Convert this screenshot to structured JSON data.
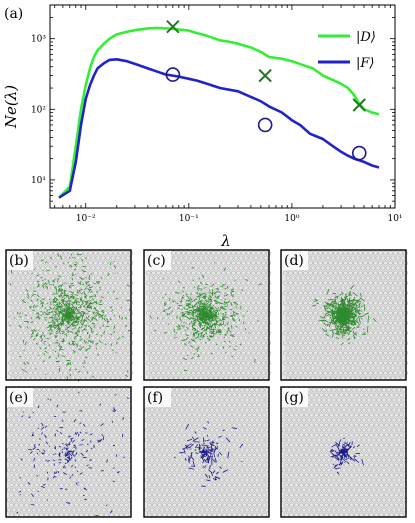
{
  "chart_data": {
    "type": "line",
    "title": "",
    "xlabel": "λ",
    "ylabel": "Ne(λ)",
    "xscale": "log",
    "yscale": "log",
    "xlim": [
      0.0045,
      10
    ],
    "ylim": [
      4,
      3000
    ],
    "grid": false,
    "legend_position": "top-right",
    "panel_label": "(a)",
    "x_tick_labels": [
      {
        "value": 0.01,
        "label": "10⁻²"
      },
      {
        "value": 0.1,
        "label": "10⁻¹"
      },
      {
        "value": 1,
        "label": "10⁰"
      },
      {
        "value": 10,
        "label": "10¹"
      }
    ],
    "y_tick_labels": [
      {
        "value": 10,
        "label": "10¹"
      },
      {
        "value": 100,
        "label": "10²"
      },
      {
        "value": 1000,
        "label": "10³"
      }
    ],
    "series": [
      {
        "name": "|D⟩",
        "color": "#33ee33",
        "x": [
          0.0055,
          0.007,
          0.008,
          0.009,
          0.01,
          0.011,
          0.012,
          0.013,
          0.015,
          0.017,
          0.02,
          0.025,
          0.03,
          0.04,
          0.05,
          0.06,
          0.07,
          0.08,
          0.1,
          0.12,
          0.15,
          0.2,
          0.25,
          0.3,
          0.4,
          0.5,
          0.6,
          0.8,
          1.0,
          1.3,
          1.6,
          2.0,
          2.5,
          3.0,
          3.5,
          4.0,
          4.5,
          5.0,
          5.5,
          6.0,
          7.0
        ],
        "y": [
          5.6,
          8,
          30,
          100,
          220,
          380,
          550,
          680,
          850,
          1000,
          1150,
          1250,
          1320,
          1400,
          1420,
          1400,
          1380,
          1350,
          1300,
          1200,
          1100,
          950,
          900,
          850,
          750,
          650,
          550,
          520,
          480,
          420,
          380,
          300,
          260,
          230,
          200,
          160,
          120,
          100,
          95,
          90,
          85
        ]
      },
      {
        "name": "|F⟩",
        "color": "#2222cc",
        "x": [
          0.0055,
          0.007,
          0.008,
          0.009,
          0.01,
          0.011,
          0.012,
          0.013,
          0.015,
          0.017,
          0.02,
          0.025,
          0.03,
          0.04,
          0.05,
          0.06,
          0.07,
          0.08,
          0.1,
          0.12,
          0.15,
          0.2,
          0.3,
          0.4,
          0.5,
          0.6,
          0.8,
          1.0,
          1.2,
          1.5,
          2.0,
          2.5,
          3.0,
          3.5,
          4.0,
          5.0,
          6.0,
          7.0
        ],
        "y": [
          5.6,
          7,
          18,
          60,
          140,
          220,
          300,
          380,
          450,
          500,
          510,
          480,
          440,
          380,
          340,
          310,
          300,
          290,
          270,
          255,
          230,
          200,
          180,
          150,
          130,
          110,
          90,
          70,
          60,
          45,
          38,
          30,
          25,
          22,
          20,
          18,
          16,
          15
        ]
      }
    ],
    "markers": [
      {
        "series": "|D⟩",
        "symbol": "x",
        "x": 0.07,
        "y": 1480
      },
      {
        "series": "|D⟩",
        "symbol": "x",
        "x": 0.55,
        "y": 300
      },
      {
        "series": "|D⟩",
        "symbol": "x",
        "x": 4.5,
        "y": 115
      },
      {
        "series": "|F⟩",
        "symbol": "o",
        "x": 0.07,
        "y": 310
      },
      {
        "series": "|F⟩",
        "symbol": "o",
        "x": 0.55,
        "y": 60
      },
      {
        "series": "|F⟩",
        "symbol": "o",
        "x": 4.5,
        "y": 24
      }
    ]
  },
  "panels": [
    {
      "label": "(b)",
      "color": "#2e8b2e",
      "spread": 0.55,
      "count": 900
    },
    {
      "label": "(c)",
      "color": "#2e8b2e",
      "spread": 0.32,
      "count": 750
    },
    {
      "label": "(d)",
      "color": "#2e8b2e",
      "spread": 0.18,
      "count": 600
    },
    {
      "label": "(e)",
      "color": "#1a1a8c",
      "spread": 0.6,
      "count": 220
    },
    {
      "label": "(f)",
      "color": "#1a1a8c",
      "spread": 0.25,
      "count": 130
    },
    {
      "label": "(g)",
      "color": "#1a1a8c",
      "spread": 0.12,
      "count": 110
    }
  ]
}
